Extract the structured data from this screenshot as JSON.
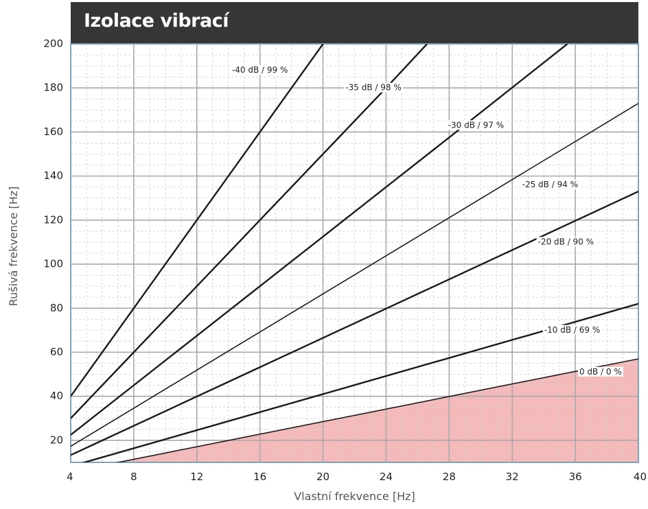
{
  "chart_data": {
    "type": "line",
    "title": "Izolace vibrací",
    "xlabel": "Vlastní frekvence [Hz]",
    "ylabel": "Rušivá frekvence [Hz]",
    "xlim": [
      4,
      40
    ],
    "ylim": [
      10,
      200
    ],
    "x_ticks": [
      4,
      8,
      12,
      16,
      20,
      24,
      28,
      32,
      36,
      40
    ],
    "y_ticks": [
      20,
      40,
      60,
      80,
      100,
      120,
      140,
      160,
      180,
      200
    ],
    "grid": true,
    "shaded_region": {
      "below_series": "0 dB / 0 %",
      "color": "#f4b9b9"
    },
    "series": [
      {
        "name": "-40 dB / 99 %",
        "label": "-40 dB / 99 %",
        "label_at": [
          16.0,
          188
        ],
        "points": [
          [
            4,
            40
          ],
          [
            8,
            80
          ],
          [
            12,
            120
          ],
          [
            16,
            160
          ],
          [
            20,
            200
          ]
        ]
      },
      {
        "name": "-35 dB / 98 %",
        "label": "-35 dB / 98 %",
        "label_at": [
          23.2,
          180
        ],
        "points": [
          [
            4,
            30
          ],
          [
            8,
            60
          ],
          [
            12,
            90
          ],
          [
            16,
            120
          ],
          [
            20,
            150
          ],
          [
            24,
            180
          ],
          [
            26.6,
            200
          ]
        ]
      },
      {
        "name": "-30 dB / 97 %",
        "label": "-30 dB / 97 %",
        "label_at": [
          29.7,
          163
        ],
        "points": [
          [
            4,
            22.5
          ],
          [
            12,
            67.5
          ],
          [
            20,
            112.5
          ],
          [
            28,
            157.5
          ],
          [
            35.5,
            200
          ]
        ]
      },
      {
        "name": "-25 dB / 94 %",
        "label": "-25 dB / 94 %",
        "label_at": [
          34.4,
          136
        ],
        "points": [
          [
            4,
            17.3
          ],
          [
            40,
            173
          ]
        ]
      },
      {
        "name": "-20 dB / 90 %",
        "label": "-20 dB / 90 %",
        "label_at": [
          35.4,
          110
        ],
        "points": [
          [
            4,
            13.3
          ],
          [
            40,
            133
          ]
        ]
      },
      {
        "name": "-10 dB / 69 %",
        "label": "-10 dB / 69 %",
        "label_at": [
          35.8,
          70
        ],
        "points": [
          [
            4,
            8.2
          ],
          [
            40,
            82
          ]
        ]
      },
      {
        "name": "0 dB / 0 %",
        "label": "0 dB / 0 %",
        "label_at": [
          37.6,
          51
        ],
        "points": [
          [
            4,
            5.7
          ],
          [
            40,
            57
          ]
        ]
      }
    ]
  }
}
